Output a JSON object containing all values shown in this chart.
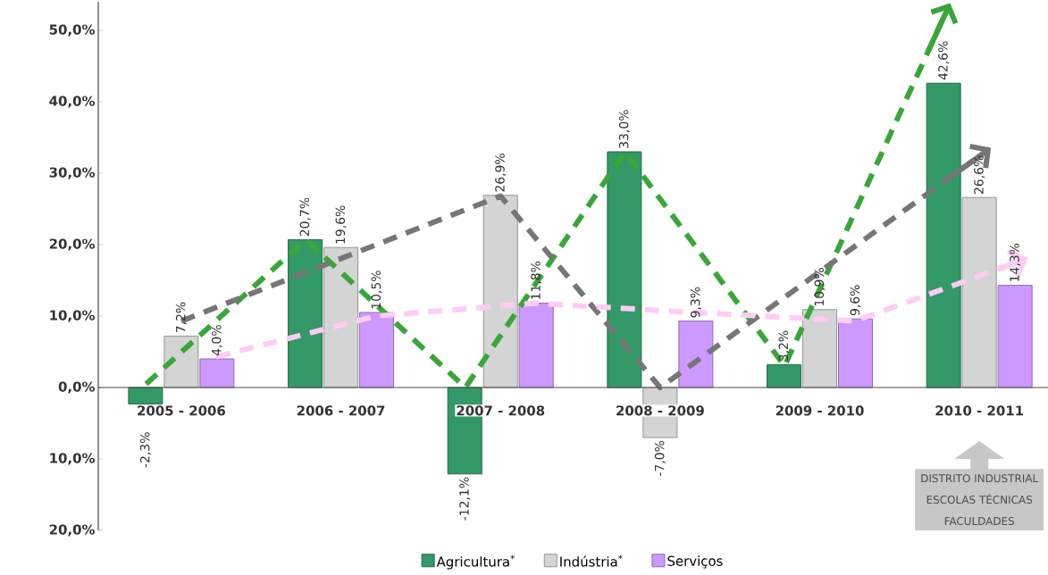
{
  "chart_data": {
    "type": "bar",
    "categories": [
      "2005 - 2006",
      "2006 - 2007",
      "2007 - 2008",
      "2008 - 2009",
      "2009 - 2010",
      "2010 - 2011"
    ],
    "series": [
      {
        "name": "Agricultura$^{*}$",
        "color": "#339966",
        "values": [
          -2.3,
          20.7,
          -12.1,
          33.0,
          3.2,
          42.6
        ],
        "value_labels": [
          "-2,3%",
          "20,7%",
          "-12,1%",
          "33,0%",
          "3,2%",
          "42,6%"
        ]
      },
      {
        "name": "Indústria$^{*}$",
        "color": "#d4d4d4",
        "values": [
          7.2,
          19.6,
          26.9,
          -7.0,
          10.9,
          26.6
        ],
        "value_labels": [
          "7,2%",
          "19,6%",
          "26,9%",
          "-7,0%",
          "10,9%",
          "26,6%"
        ]
      },
      {
        "name": "Serviços",
        "color": "#cc99ff",
        "values": [
          4.0,
          10.5,
          11.8,
          9.3,
          9.6,
          14.3
        ],
        "value_labels": [
          "4,0%",
          "10,5%",
          "11,8%",
          "9,3%",
          "9,6%",
          "14,3%"
        ]
      },
      {
        "type": "line",
        "color": "#3aa63a",
        "line_style": "dashed",
        "values": [
          0.5,
          20.7,
          0,
          33,
          3,
          52
        ]
      },
      {
        "type": "line",
        "color": "#767676",
        "line_style": "dashed",
        "values": [
          9.3,
          null,
          26.8,
          0,
          null,
          32.4
        ]
      },
      {
        "type": "line",
        "color": "#ffccf5",
        "line_style": "dashed",
        "values": [
          4.3,
          10,
          11.8,
          10.5,
          9.3,
          17.4
        ]
      }
    ],
    "ylim": [
      -20,
      54
    ],
    "yticks": [
      {
        "value": -20,
        "label": "20,0%"
      },
      {
        "value": -10,
        "label": "10,0%"
      },
      {
        "value": 0,
        "label": "0,0%"
      },
      {
        "value": 10,
        "label": "10,0%"
      },
      {
        "value": 20,
        "label": "20,0%"
      },
      {
        "value": 30,
        "label": "30,0%"
      },
      {
        "value": 40,
        "label": "40,0%"
      },
      {
        "value": 50,
        "label": "50,0%"
      }
    ],
    "legend": "bottom",
    "grid": false,
    "annotations": [
      "DISTRITO INDUSTRIAL",
      "ESCOLAS TÉCNICAS",
      "FACULDADES"
    ]
  }
}
